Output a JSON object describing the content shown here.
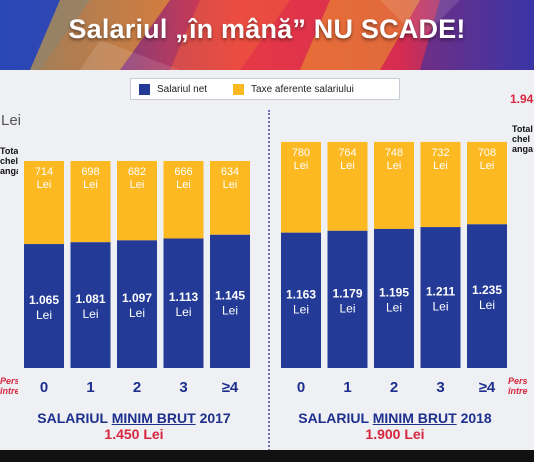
{
  "banner": {
    "title": "Salariul „în mână” NU SCADE!"
  },
  "legend": {
    "items": [
      {
        "label": "Salariul net",
        "color": "#233a96"
      },
      {
        "label": "Taxe aferente salariului",
        "color": "#fdb922"
      }
    ]
  },
  "unit_label": "Lei",
  "side": {
    "left_total": "Total\ncheltuieli\nangajator",
    "right_total": "Total\nchel\nanga",
    "right_value": "1.94",
    "left_persons": "Persoane în\nîntreținere",
    "right_persons": "Pers\nîntre"
  },
  "chart_data": [
    {
      "type": "bar",
      "stacked": true,
      "categories": [
        "0",
        "1",
        "2",
        "3",
        "≥4"
      ],
      "series": [
        {
          "name": "Salariul net",
          "values": [
            1065,
            1081,
            1097,
            1113,
            1145
          ],
          "labels": [
            "1.065",
            "1.081",
            "1.097",
            "1.113",
            "1.145"
          ]
        },
        {
          "name": "Taxe aferente salariului",
          "values": [
            714,
            698,
            682,
            666,
            634
          ],
          "labels": [
            "714",
            "698",
            "682",
            "666",
            "634"
          ]
        }
      ],
      "title": "SALARIUL MINIM BRUT 2017",
      "subtitle": "1.450 Lei"
    },
    {
      "type": "bar",
      "stacked": true,
      "categories": [
        "0",
        "1",
        "2",
        "3",
        "≥4"
      ],
      "series": [
        {
          "name": "Salariul net",
          "values": [
            1163,
            1179,
            1195,
            1211,
            1235
          ],
          "labels": [
            "1.163",
            "1.179",
            "1.195",
            "1.211",
            "1.235"
          ]
        },
        {
          "name": "Taxe aferente salariului",
          "values": [
            780,
            764,
            748,
            732,
            708
          ],
          "labels": [
            "780",
            "764",
            "748",
            "732",
            "708"
          ]
        }
      ],
      "title": "SALARIUL MINIM BRUT 2018",
      "subtitle": "1.900 Lei"
    }
  ],
  "footer": [
    {
      "pre": "SALARIUL ",
      "underlined": "MINIM BRUT",
      "post": " 2017",
      "amount": "1.450 Lei"
    },
    {
      "pre": "SALARIUL ",
      "underlined": "MINIM BRUT",
      "post": " 2018",
      "amount": "1.900 Lei"
    }
  ],
  "value_unit": "Lei"
}
